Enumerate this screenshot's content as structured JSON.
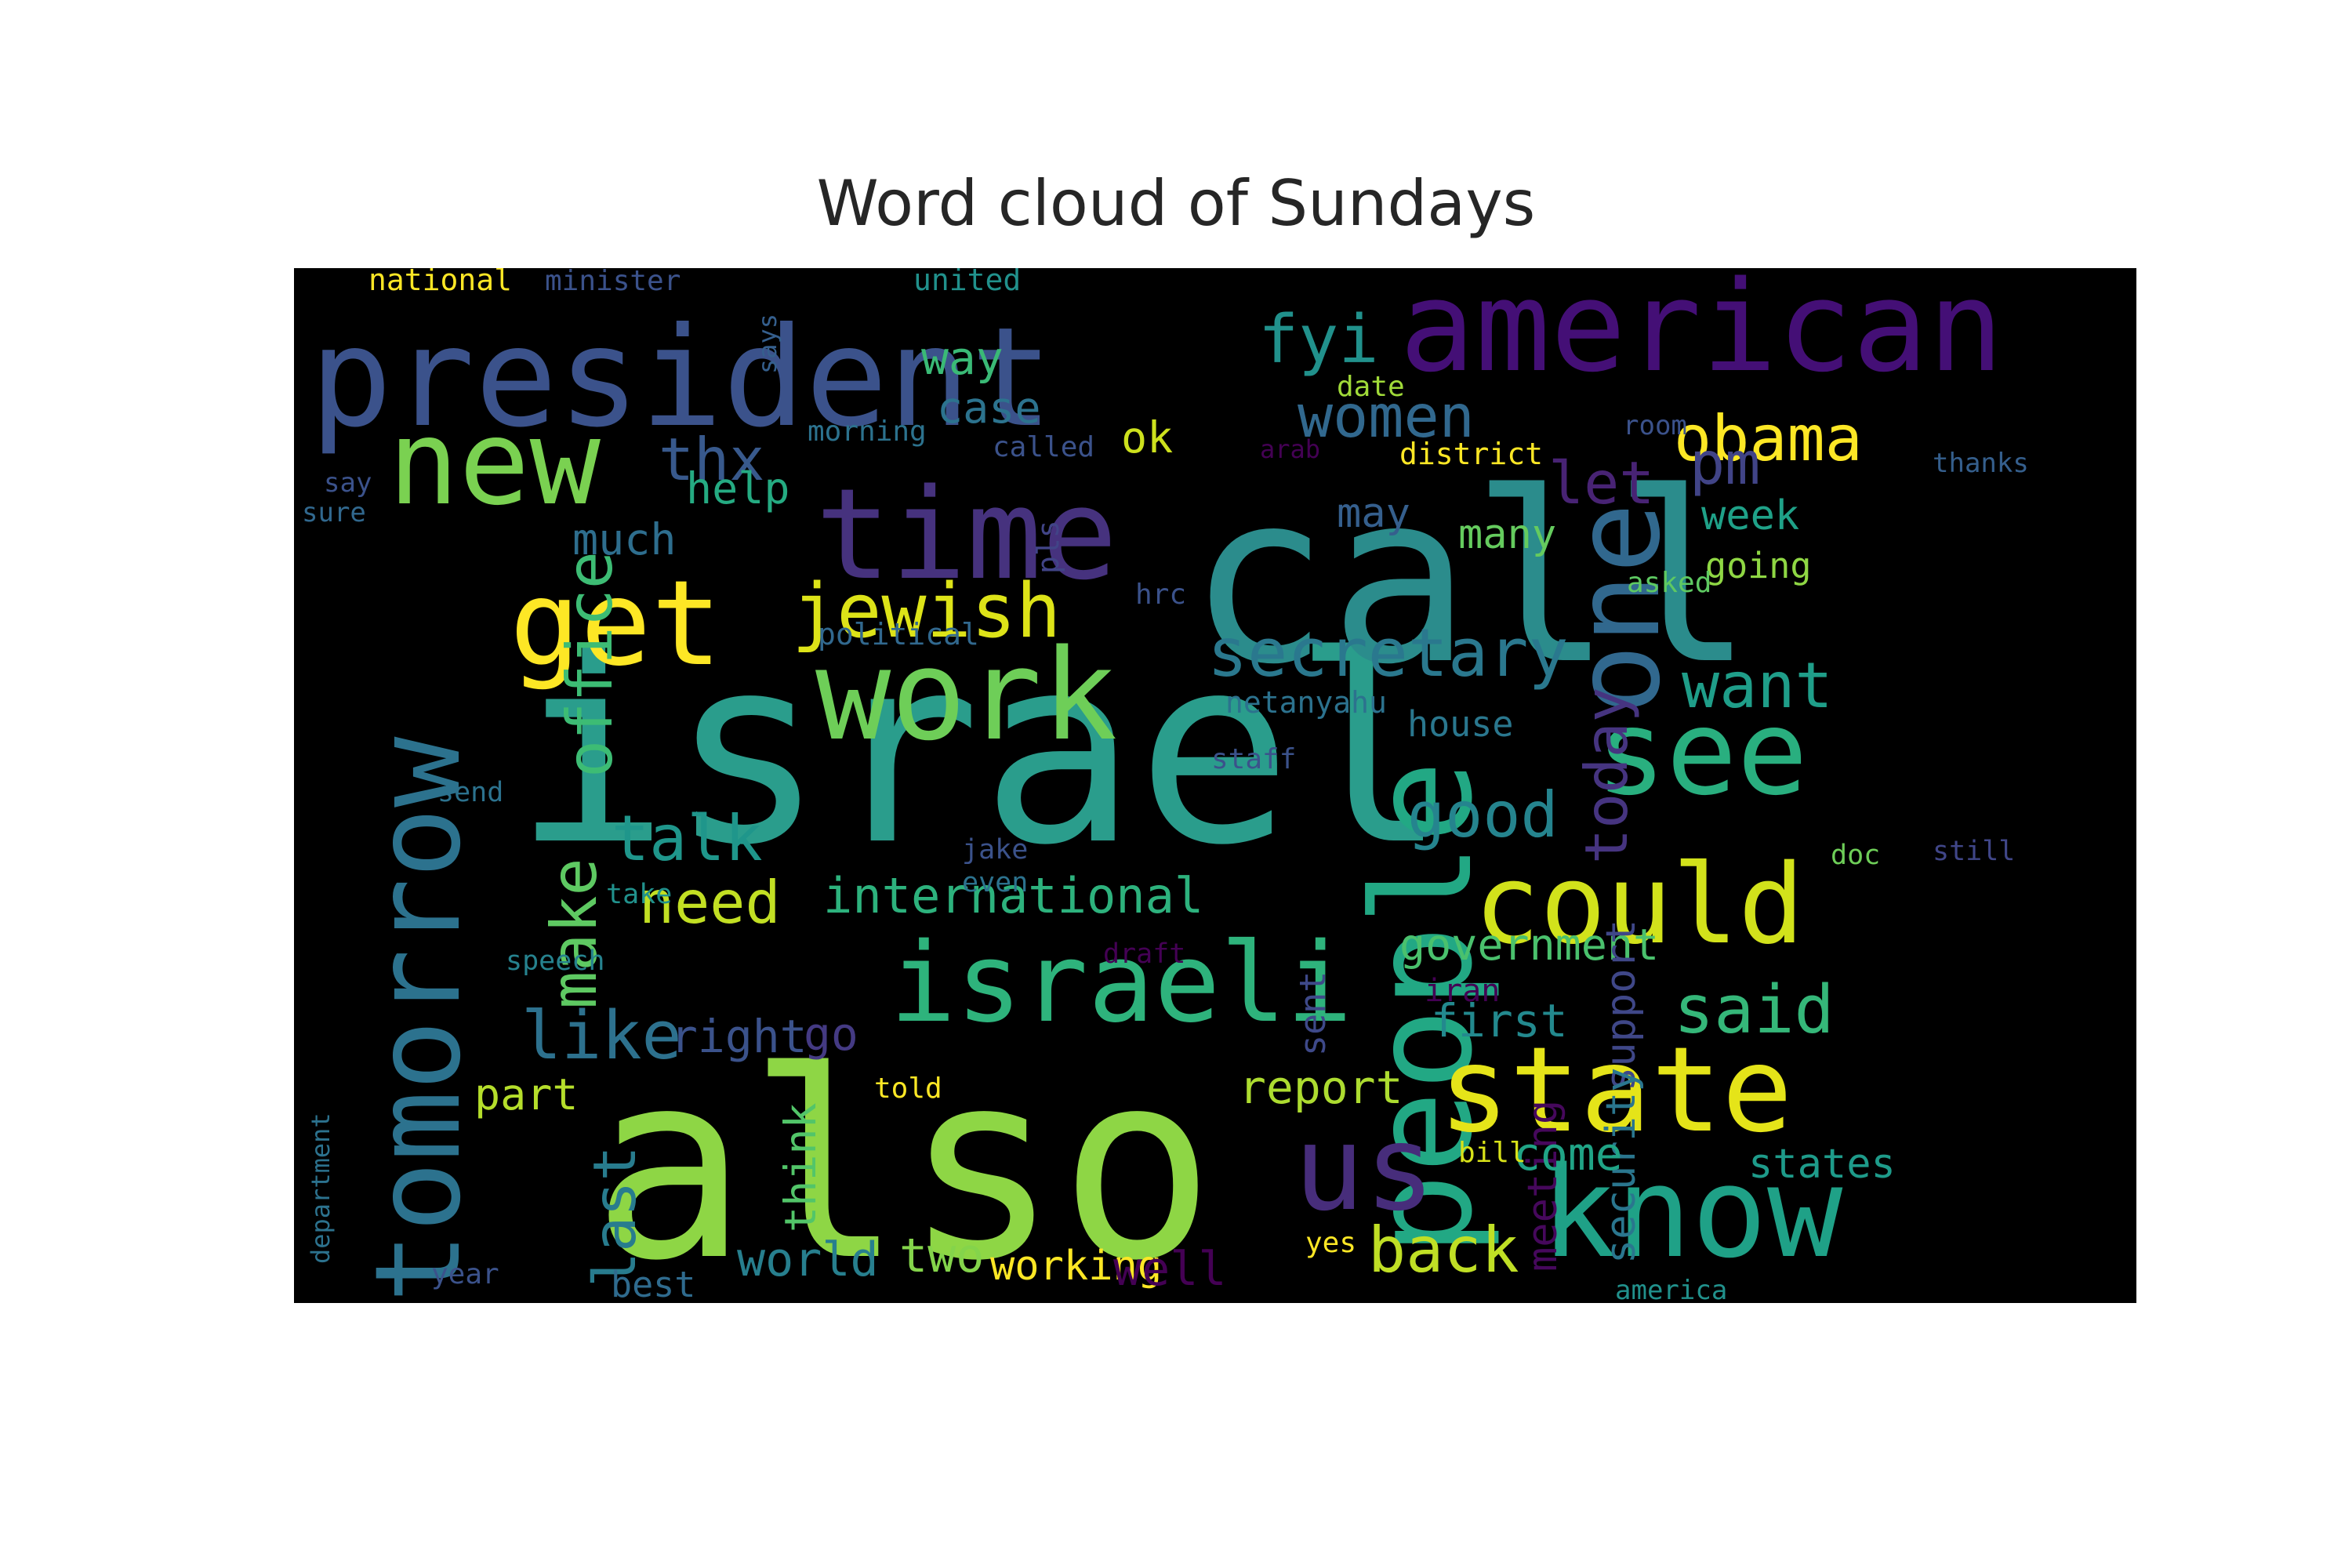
{
  "chart_data": {
    "type": "wordcloud",
    "title": "Word cloud of Sundays",
    "background": "#000000",
    "colormap": "viridis",
    "words": [
      {
        "text": "israel",
        "weight": 1.0,
        "color": "#2a9d8c"
      },
      {
        "text": "also",
        "weight": 0.98,
        "color": "#8ed645"
      },
      {
        "text": "call",
        "weight": 0.96,
        "color": "#2b8c8c"
      },
      {
        "text": "president",
        "weight": 0.72,
        "color": "#3b528b"
      },
      {
        "text": "american",
        "weight": 0.66,
        "color": "#440f76"
      },
      {
        "text": "people",
        "weight": 0.62,
        "color": "#22a884"
      },
      {
        "text": "state",
        "weight": 0.6,
        "color": "#e5e419"
      },
      {
        "text": "time",
        "weight": 0.58,
        "color": "#46327e"
      },
      {
        "text": "tomorrow",
        "weight": 0.56,
        "color": "#2c728e"
      },
      {
        "text": "work",
        "weight": 0.55,
        "color": "#6ece58"
      },
      {
        "text": "know",
        "weight": 0.54,
        "color": "#1fa187"
      },
      {
        "text": "israeli",
        "weight": 0.52,
        "color": "#2eb37c"
      },
      {
        "text": "could",
        "weight": 0.5,
        "color": "#d2e21b"
      },
      {
        "text": "see",
        "weight": 0.48,
        "color": "#29af7f"
      },
      {
        "text": "one",
        "weight": 0.47,
        "color": "#31688e"
      },
      {
        "text": "new",
        "weight": 0.46,
        "color": "#7ad151"
      },
      {
        "text": "get",
        "weight": 0.45,
        "color": "#fde725"
      },
      {
        "text": "us",
        "weight": 0.44,
        "color": "#472d7b"
      },
      {
        "text": "jewish",
        "weight": 0.3,
        "color": "#dde318"
      },
      {
        "text": "secretary",
        "weight": 0.28,
        "color": "#2a788e"
      },
      {
        "text": "obama",
        "weight": 0.26,
        "color": "#fde725"
      },
      {
        "text": "fyi",
        "weight": 0.26,
        "color": "#21918c"
      },
      {
        "text": "women",
        "weight": 0.24,
        "color": "#31688e"
      },
      {
        "text": "want",
        "weight": 0.25,
        "color": "#1f9e89"
      },
      {
        "text": "office",
        "weight": 0.25,
        "color": "#3dbc74"
      },
      {
        "text": "make",
        "weight": 0.24,
        "color": "#5ec962"
      },
      {
        "text": "like",
        "weight": 0.26,
        "color": "#2d718e"
      },
      {
        "text": "said",
        "weight": 0.26,
        "color": "#35b779"
      },
      {
        "text": "good",
        "weight": 0.25,
        "color": "#25848e"
      },
      {
        "text": "back",
        "weight": 0.25,
        "color": "#c0df25"
      },
      {
        "text": "talk",
        "weight": 0.24,
        "color": "#1f968b"
      },
      {
        "text": "need",
        "weight": 0.23,
        "color": "#c2df23"
      },
      {
        "text": "thx",
        "weight": 0.23,
        "color": "#38598c"
      },
      {
        "text": "pm",
        "weight": 0.23,
        "color": "#414487"
      },
      {
        "text": "let",
        "weight": 0.23,
        "color": "#482374"
      },
      {
        "text": "today",
        "weight": 0.22,
        "color": "#463480"
      },
      {
        "text": "last",
        "weight": 0.22,
        "color": "#287c8e"
      },
      {
        "text": "international",
        "weight": 0.19,
        "color": "#2db27d"
      },
      {
        "text": "government",
        "weight": 0.17,
        "color": "#4ac16d"
      },
      {
        "text": "report",
        "weight": 0.18,
        "color": "#addc30"
      },
      {
        "text": "support",
        "weight": 0.17,
        "color": "#3f4788"
      },
      {
        "text": "security",
        "weight": 0.17,
        "color": "#2a768e"
      },
      {
        "text": "meeting",
        "weight": 0.16,
        "color": "#46085c"
      },
      {
        "text": "world",
        "weight": 0.17,
        "color": "#277f8e"
      },
      {
        "text": "two",
        "weight": 0.17,
        "color": "#84d44b"
      },
      {
        "text": "working",
        "weight": 0.16,
        "color": "#fde725"
      },
      {
        "text": "well",
        "weight": 0.17,
        "color": "#440154"
      },
      {
        "text": "come",
        "weight": 0.16,
        "color": "#20a486"
      },
      {
        "text": "states",
        "weight": 0.15,
        "color": "#1e9b8a"
      },
      {
        "text": "first",
        "weight": 0.16,
        "color": "#23898e"
      },
      {
        "text": "right",
        "weight": 0.16,
        "color": "#3b528b"
      },
      {
        "text": "go",
        "weight": 0.16,
        "color": "#443a83"
      },
      {
        "text": "part",
        "weight": 0.15,
        "color": "#b5de2b"
      },
      {
        "text": "think",
        "weight": 0.15,
        "color": "#52c569"
      },
      {
        "text": "case",
        "weight": 0.15,
        "color": "#2c738e"
      },
      {
        "text": "way",
        "weight": 0.15,
        "color": "#3aba76"
      },
      {
        "text": "ok",
        "weight": 0.15,
        "color": "#cde11d"
      },
      {
        "text": "help",
        "weight": 0.15,
        "color": "#25ab82"
      },
      {
        "text": "much",
        "weight": 0.15,
        "color": "#2e6e8e"
      },
      {
        "text": "may",
        "weight": 0.14,
        "color": "#355f8d"
      },
      {
        "text": "many",
        "weight": 0.15,
        "color": "#65cb5e"
      },
      {
        "text": "week",
        "weight": 0.15,
        "color": "#1fa188"
      },
      {
        "text": "going",
        "weight": 0.13,
        "color": "#8fd744"
      },
      {
        "text": "house",
        "weight": 0.13,
        "color": "#2a778e"
      },
      {
        "text": "sent",
        "weight": 0.13,
        "color": "#3e4989"
      },
      {
        "text": "best",
        "weight": 0.13,
        "color": "#2f6b8e"
      },
      {
        "text": "national",
        "weight": 0.09,
        "color": "#fde725"
      },
      {
        "text": "minister",
        "weight": 0.09,
        "color": "#3b528b"
      },
      {
        "text": "united",
        "weight": 0.09,
        "color": "#21918c"
      },
      {
        "text": "says",
        "weight": 0.08,
        "color": "#355f8d"
      },
      {
        "text": "morning",
        "weight": 0.08,
        "color": "#2c728e"
      },
      {
        "text": "called",
        "weight": 0.08,
        "color": "#3b528b"
      },
      {
        "text": "date",
        "weight": 0.08,
        "color": "#a0da39"
      },
      {
        "text": "arab",
        "weight": 0.08,
        "color": "#440154"
      },
      {
        "text": "district",
        "weight": 0.09,
        "color": "#fde725"
      },
      {
        "text": "room",
        "weight": 0.08,
        "color": "#3b528b"
      },
      {
        "text": "thanks",
        "weight": 0.08,
        "color": "#355f8d"
      },
      {
        "text": "say",
        "weight": 0.08,
        "color": "#3b528b"
      },
      {
        "text": "sure",
        "weight": 0.08,
        "color": "#31688e"
      },
      {
        "text": "pls",
        "weight": 0.09,
        "color": "#414487"
      },
      {
        "text": "hrc",
        "weight": 0.08,
        "color": "#3b528b"
      },
      {
        "text": "asked",
        "weight": 0.08,
        "color": "#5ec962"
      },
      {
        "text": "political",
        "weight": 0.08,
        "color": "#31688e"
      },
      {
        "text": "netanyahu",
        "weight": 0.08,
        "color": "#2c728e"
      },
      {
        "text": "staff",
        "weight": 0.08,
        "color": "#3b528b"
      },
      {
        "text": "send",
        "weight": 0.08,
        "color": "#2c728e"
      },
      {
        "text": "jake",
        "weight": 0.08,
        "color": "#3b528b"
      },
      {
        "text": "even",
        "weight": 0.08,
        "color": "#2c728e"
      },
      {
        "text": "take",
        "weight": 0.08,
        "color": "#21918c"
      },
      {
        "text": "doc",
        "weight": 0.08,
        "color": "#6ece58"
      },
      {
        "text": "still",
        "weight": 0.08,
        "color": "#404688"
      },
      {
        "text": "speech",
        "weight": 0.08,
        "color": "#26828e"
      },
      {
        "text": "draft",
        "weight": 0.08,
        "color": "#440154"
      },
      {
        "text": "iran",
        "weight": 0.09,
        "color": "#440154"
      },
      {
        "text": "told",
        "weight": 0.08,
        "color": "#fde725"
      },
      {
        "text": "department",
        "weight": 0.08,
        "color": "#2c728e"
      },
      {
        "text": "bill",
        "weight": 0.08,
        "color": "#d8e219"
      },
      {
        "text": "year",
        "weight": 0.08,
        "color": "#3b528b"
      },
      {
        "text": "yes",
        "weight": 0.08,
        "color": "#fde725"
      },
      {
        "text": "america",
        "weight": 0.08,
        "color": "#21918c"
      }
    ]
  }
}
